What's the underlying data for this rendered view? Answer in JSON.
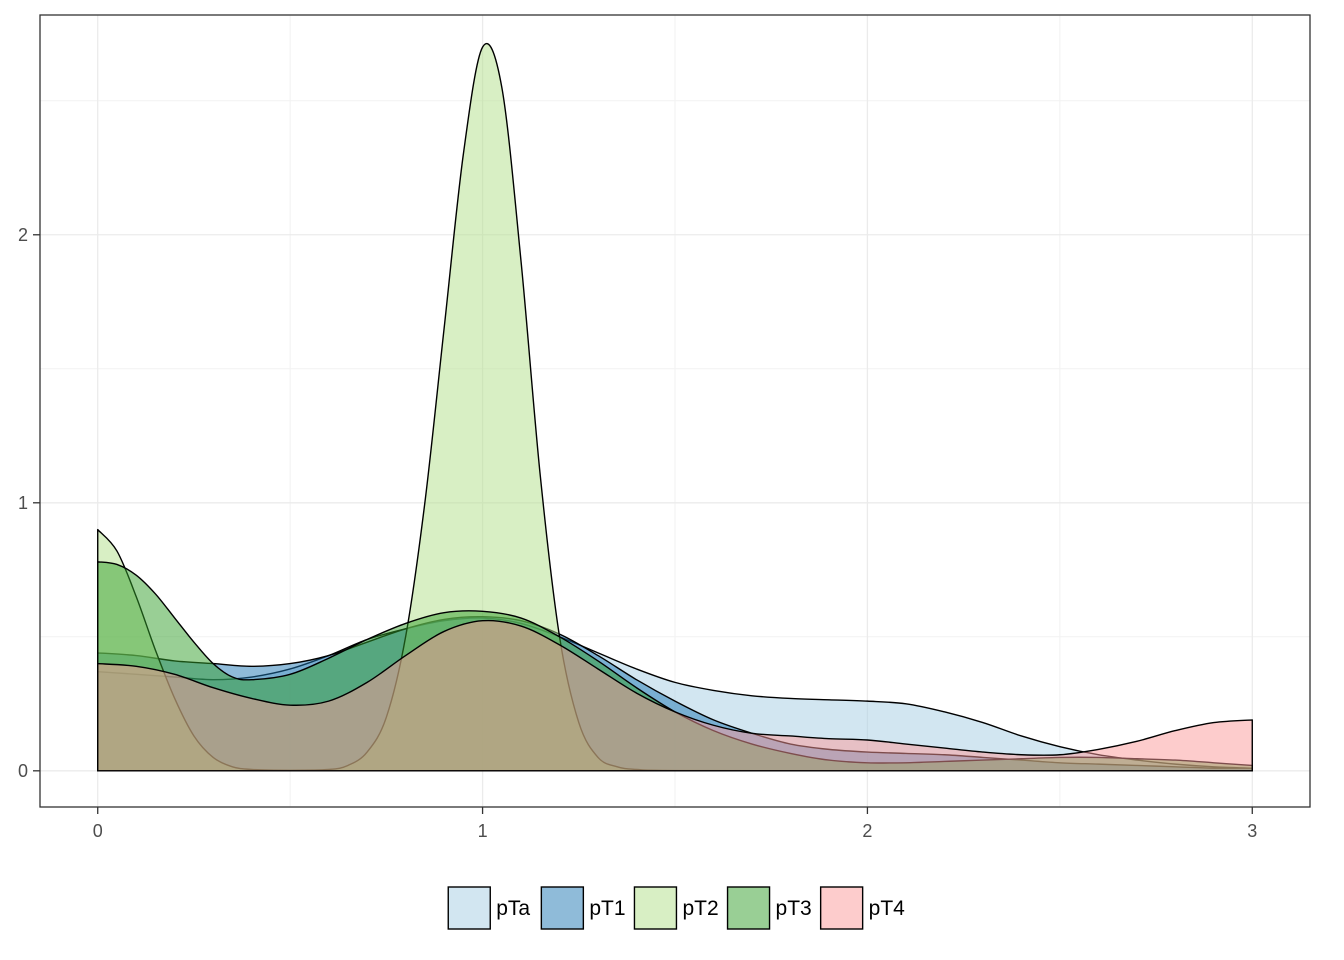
{
  "chart_data": {
    "type": "area",
    "subtype": "density",
    "title": "",
    "xlabel": "",
    "ylabel": "",
    "xlim": [
      -0.15,
      3.15
    ],
    "ylim": [
      -0.135,
      2.82
    ],
    "x_ticks": [
      0,
      1,
      2,
      3
    ],
    "x_tick_labels": [
      "0",
      "1",
      "2",
      "3"
    ],
    "y_ticks": [
      0,
      1,
      2
    ],
    "y_tick_labels": [
      "0",
      "1",
      "2"
    ],
    "grid": true,
    "legend_position": "bottom",
    "series": [
      {
        "name": "pTa",
        "color": "#a6cee3",
        "points": [
          [
            0,
            0.37
          ],
          [
            0.1,
            0.36
          ],
          [
            0.2,
            0.35
          ],
          [
            0.3,
            0.34
          ],
          [
            0.4,
            0.35
          ],
          [
            0.5,
            0.38
          ],
          [
            0.6,
            0.43
          ],
          [
            0.7,
            0.49
          ],
          [
            0.8,
            0.53
          ],
          [
            0.9,
            0.56
          ],
          [
            1.0,
            0.57
          ],
          [
            1.1,
            0.55
          ],
          [
            1.2,
            0.5
          ],
          [
            1.3,
            0.44
          ],
          [
            1.4,
            0.38
          ],
          [
            1.5,
            0.33
          ],
          [
            1.6,
            0.3
          ],
          [
            1.7,
            0.28
          ],
          [
            1.8,
            0.27
          ],
          [
            1.9,
            0.265
          ],
          [
            2.0,
            0.26
          ],
          [
            2.1,
            0.25
          ],
          [
            2.2,
            0.22
          ],
          [
            2.3,
            0.18
          ],
          [
            2.4,
            0.13
          ],
          [
            2.5,
            0.09
          ],
          [
            2.6,
            0.06
          ],
          [
            2.7,
            0.04
          ],
          [
            2.8,
            0.025
          ],
          [
            2.9,
            0.015
          ],
          [
            3.0,
            0.01
          ]
        ]
      },
      {
        "name": "pT1",
        "color": "#1f78b4",
        "points": [
          [
            0,
            0.44
          ],
          [
            0.1,
            0.43
          ],
          [
            0.2,
            0.41
          ],
          [
            0.3,
            0.4
          ],
          [
            0.4,
            0.39
          ],
          [
            0.5,
            0.4
          ],
          [
            0.6,
            0.43
          ],
          [
            0.7,
            0.48
          ],
          [
            0.8,
            0.53
          ],
          [
            0.9,
            0.565
          ],
          [
            1.0,
            0.575
          ],
          [
            1.1,
            0.56
          ],
          [
            1.2,
            0.51
          ],
          [
            1.3,
            0.43
          ],
          [
            1.4,
            0.34
          ],
          [
            1.5,
            0.26
          ],
          [
            1.6,
            0.19
          ],
          [
            1.7,
            0.14
          ],
          [
            1.8,
            0.1
          ],
          [
            1.9,
            0.08
          ],
          [
            2.0,
            0.07
          ],
          [
            2.1,
            0.065
          ],
          [
            2.2,
            0.06
          ],
          [
            2.3,
            0.05
          ],
          [
            2.4,
            0.04
          ],
          [
            2.5,
            0.03
          ],
          [
            2.6,
            0.025
          ],
          [
            2.7,
            0.02
          ],
          [
            2.8,
            0.015
          ],
          [
            2.9,
            0.01
          ],
          [
            3.0,
            0.01
          ]
        ]
      },
      {
        "name": "pT2",
        "color": "#b2df8a",
        "points": [
          [
            0,
            0.9
          ],
          [
            0.05,
            0.82
          ],
          [
            0.1,
            0.65
          ],
          [
            0.15,
            0.45
          ],
          [
            0.2,
            0.27
          ],
          [
            0.25,
            0.13
          ],
          [
            0.3,
            0.05
          ],
          [
            0.35,
            0.015
          ],
          [
            0.4,
            0.005
          ],
          [
            0.5,
            0.002
          ],
          [
            0.6,
            0.005
          ],
          [
            0.65,
            0.02
          ],
          [
            0.7,
            0.07
          ],
          [
            0.75,
            0.2
          ],
          [
            0.8,
            0.5
          ],
          [
            0.85,
            1.0
          ],
          [
            0.9,
            1.65
          ],
          [
            0.95,
            2.3
          ],
          [
            1.0,
            2.7
          ],
          [
            1.05,
            2.55
          ],
          [
            1.1,
            1.9
          ],
          [
            1.15,
            1.1
          ],
          [
            1.2,
            0.5
          ],
          [
            1.25,
            0.18
          ],
          [
            1.3,
            0.05
          ],
          [
            1.35,
            0.015
          ],
          [
            1.4,
            0.005
          ],
          [
            1.5,
            0.001
          ],
          [
            2.0,
            0.0
          ],
          [
            3.0,
            0.0
          ]
        ]
      },
      {
        "name": "pT3",
        "color": "#33a02c",
        "points": [
          [
            0,
            0.78
          ],
          [
            0.05,
            0.77
          ],
          [
            0.1,
            0.73
          ],
          [
            0.15,
            0.66
          ],
          [
            0.2,
            0.57
          ],
          [
            0.25,
            0.48
          ],
          [
            0.3,
            0.4
          ],
          [
            0.35,
            0.35
          ],
          [
            0.4,
            0.34
          ],
          [
            0.5,
            0.36
          ],
          [
            0.6,
            0.42
          ],
          [
            0.7,
            0.49
          ],
          [
            0.8,
            0.55
          ],
          [
            0.9,
            0.59
          ],
          [
            1.0,
            0.595
          ],
          [
            1.1,
            0.57
          ],
          [
            1.2,
            0.5
          ],
          [
            1.3,
            0.41
          ],
          [
            1.4,
            0.31
          ],
          [
            1.5,
            0.22
          ],
          [
            1.6,
            0.15
          ],
          [
            1.7,
            0.1
          ],
          [
            1.8,
            0.065
          ],
          [
            1.9,
            0.04
          ],
          [
            2.0,
            0.03
          ],
          [
            2.1,
            0.03
          ],
          [
            2.2,
            0.035
          ],
          [
            2.3,
            0.04
          ],
          [
            2.4,
            0.045
          ],
          [
            2.5,
            0.05
          ],
          [
            2.6,
            0.05
          ],
          [
            2.7,
            0.045
          ],
          [
            2.8,
            0.04
          ],
          [
            2.9,
            0.03
          ],
          [
            3.0,
            0.02
          ]
        ]
      },
      {
        "name": "pT4",
        "color": "#fb9a99",
        "points": [
          [
            0,
            0.4
          ],
          [
            0.1,
            0.39
          ],
          [
            0.2,
            0.36
          ],
          [
            0.3,
            0.31
          ],
          [
            0.4,
            0.27
          ],
          [
            0.5,
            0.245
          ],
          [
            0.6,
            0.26
          ],
          [
            0.7,
            0.33
          ],
          [
            0.8,
            0.43
          ],
          [
            0.9,
            0.52
          ],
          [
            1.0,
            0.56
          ],
          [
            1.1,
            0.54
          ],
          [
            1.2,
            0.47
          ],
          [
            1.3,
            0.38
          ],
          [
            1.4,
            0.29
          ],
          [
            1.5,
            0.22
          ],
          [
            1.6,
            0.17
          ],
          [
            1.7,
            0.14
          ],
          [
            1.8,
            0.13
          ],
          [
            1.9,
            0.12
          ],
          [
            2.0,
            0.115
          ],
          [
            2.1,
            0.1
          ],
          [
            2.2,
            0.085
          ],
          [
            2.3,
            0.07
          ],
          [
            2.4,
            0.06
          ],
          [
            2.5,
            0.06
          ],
          [
            2.6,
            0.08
          ],
          [
            2.7,
            0.11
          ],
          [
            2.8,
            0.15
          ],
          [
            2.9,
            0.18
          ],
          [
            3.0,
            0.19
          ]
        ]
      }
    ]
  },
  "legend": {
    "items": [
      {
        "label": "pTa"
      },
      {
        "label": "pT1"
      },
      {
        "label": "pT2"
      },
      {
        "label": "pT3"
      },
      {
        "label": "pT4"
      }
    ]
  }
}
